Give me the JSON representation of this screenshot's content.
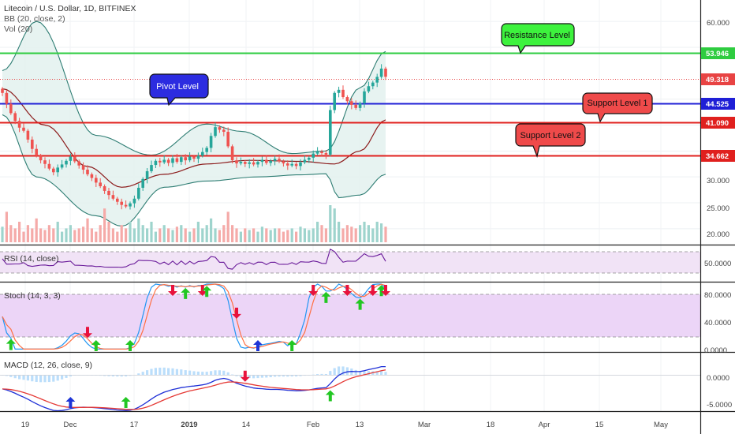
{
  "header": {
    "title": "Litecoin / U.S. Dollar, 1D, BITFINEX",
    "bb": "BB (20, close, 2)",
    "vol": "Vol (20)"
  },
  "panes": {
    "rsi": "RSI (14, close)",
    "stoch": "Stoch (14, 3, 3)",
    "macd": "MACD (12, 26, close, 9)"
  },
  "levels": {
    "resistance": {
      "value": "53.946",
      "bubble": "Resistance Level",
      "color": "#2ecc40"
    },
    "last": {
      "value": "49.318",
      "color": "#e84343"
    },
    "pivot": {
      "value": "44.525",
      "bubble": "Pivot Level",
      "color": "#1f1fd6"
    },
    "support1": {
      "value": "41.090",
      "bubble": "Support Level 1",
      "color": "#e0201e"
    },
    "support2": {
      "value": "34.662",
      "bubble": "Support Level 2",
      "color": "#e0201e"
    }
  },
  "colors": {
    "up": "#26a69a",
    "down": "#ef5350",
    "bb_fill": "#e4f2ef",
    "bb_line": "#2e7d73",
    "ma": "#8b1a1a",
    "rsi_line": "#6a1b9a",
    "rsi_fill": "#f1e3f6",
    "stoch_fill": "#ecd5f7",
    "stoch_k": "#2196f3",
    "stoch_d": "#ff7043",
    "macd_line": "#1e2fd6",
    "signal_line": "#e53935",
    "hist": "#bbdefb",
    "arrow_up_green": "#22c722",
    "arrow_down_red": "#e8123c",
    "arrow_up_blue": "#1e35d6"
  },
  "axis": {
    "price_ticks": [
      "60.000",
      "30.000",
      "25.000",
      "20.000"
    ],
    "rsi_ticks": [
      "50.0000"
    ],
    "stoch_ticks": [
      "80.0000",
      "40.0000",
      "0.0000"
    ],
    "macd_ticks": [
      "0.0000",
      "-5.0000"
    ],
    "dates": [
      "19",
      "Dec",
      "17",
      "2019",
      "14",
      "Feb",
      "13",
      "Mar",
      "18",
      "Apr",
      "15",
      "May"
    ]
  },
  "chart_data": {
    "type": "candlestick",
    "symbol": "Litecoin / U.S. Dollar, 1D, BITFINEX",
    "price_ylim": [
      18,
      62
    ],
    "closes": [
      46.2,
      44.1,
      42.3,
      40.8,
      39.5,
      38.9,
      37.2,
      35.4,
      34.1,
      33.2,
      32.5,
      31.6,
      30.9,
      31.8,
      32.4,
      33.1,
      33.9,
      33.0,
      32.2,
      31.4,
      30.5,
      29.8,
      28.9,
      28.2,
      27.3,
      26.5,
      25.8,
      25.2,
      24.6,
      24.3,
      24.9,
      25.8,
      27.9,
      29.6,
      31.1,
      32.3,
      33.1,
      32.8,
      33.3,
      32.7,
      33.6,
      32.9,
      33.8,
      33.2,
      33.9,
      33.5,
      34.1,
      34.8,
      35.6,
      37.9,
      39.6,
      39.1,
      38.7,
      35.9,
      33.2,
      32.6,
      32.9,
      32.5,
      32.8,
      32.4,
      32.9,
      33.3,
      32.7,
      33.1,
      33.5,
      33.0,
      32.6,
      32.2,
      32.5,
      32.1,
      32.8,
      33.3,
      33.7,
      34.5,
      34.9,
      34.6,
      34.3,
      42.9,
      46.2,
      46.8,
      45.4,
      44.6,
      43.9,
      43.3,
      44.2,
      46.5,
      47.5,
      48.2,
      49.3,
      50.9,
      49.318
    ],
    "bb_upper_anchor": [
      [
        0,
        50.5
      ],
      [
        8,
        60
      ],
      [
        22,
        38
      ],
      [
        35,
        34.2
      ],
      [
        48,
        40.2
      ],
      [
        56,
        38.8
      ],
      [
        68,
        34.5
      ],
      [
        76,
        35
      ],
      [
        84,
        47.2
      ],
      [
        90,
        54.2
      ]
    ],
    "bb_lower_anchor": [
      [
        0,
        42
      ],
      [
        8,
        30
      ],
      [
        22,
        22.5
      ],
      [
        28,
        20.5
      ],
      [
        38,
        28
      ],
      [
        48,
        29.2
      ],
      [
        60,
        30
      ],
      [
        70,
        30.4
      ],
      [
        76,
        30.6
      ],
      [
        79,
        26
      ],
      [
        84,
        26.5
      ],
      [
        90,
        30.5
      ]
    ],
    "bb_basis_anchor": [
      [
        0,
        47
      ],
      [
        10,
        40
      ],
      [
        20,
        32
      ],
      [
        28,
        28
      ],
      [
        38,
        30.5
      ],
      [
        48,
        32.5
      ],
      [
        58,
        33.2
      ],
      [
        70,
        33
      ],
      [
        78,
        32.5
      ],
      [
        84,
        35
      ],
      [
        90,
        41
      ]
    ],
    "volume_pattern": [
      0.35,
      0.8,
      0.4,
      0.3,
      0.5,
      0.2,
      0.4,
      0.3,
      0.6,
      0.3,
      0.25,
      0.4,
      0.3,
      0.5,
      0.2,
      0.3,
      0.4,
      0.25,
      0.3,
      0.35,
      0.6,
      0.3,
      0.2,
      0.4,
      0.9,
      0.5,
      0.3,
      0.2,
      0.4,
      0.3,
      0.5,
      0.3,
      0.6,
      0.4,
      0.3,
      0.5,
      0.2,
      0.3,
      0.4,
      0.3,
      0.25,
      0.35,
      0.4,
      0.3,
      0.2,
      0.3,
      0.5,
      0.3,
      0.4,
      0.6,
      0.3,
      0.25,
      0.4,
      0.8,
      0.4,
      0.3,
      0.2,
      0.3,
      0.25,
      0.3,
      0.2,
      0.35,
      0.3,
      0.25,
      0.3,
      0.3,
      0.2,
      0.25,
      0.3,
      0.2,
      0.35,
      0.3,
      0.25,
      0.3,
      0.5,
      0.4,
      0.3,
      1.0,
      0.9,
      0.5,
      0.3,
      0.4,
      0.35,
      0.3,
      0.4,
      0.5,
      0.4,
      0.3,
      0.5,
      0.45,
      0.35
    ],
    "rsi_ylim": [
      20,
      80
    ],
    "rsi_bands": [
      30,
      70
    ],
    "stoch_ylim": [
      -2,
      100
    ],
    "stoch_bands": [
      20,
      80
    ],
    "macd_ylim": [
      -6,
      3.5
    ],
    "arrows": {
      "stoch": [
        {
          "bar": 2,
          "color": "green",
          "dir": "up"
        },
        {
          "bar": 20,
          "color": "red",
          "dir": "down"
        },
        {
          "bar": 22,
          "color": "green",
          "dir": "up"
        },
        {
          "bar": 30,
          "color": "green",
          "dir": "up"
        },
        {
          "bar": 40,
          "color": "red",
          "dir": "down"
        },
        {
          "bar": 43,
          "color": "green",
          "dir": "up"
        },
        {
          "bar": 47,
          "color": "red",
          "dir": "down"
        },
        {
          "bar": 48,
          "color": "green",
          "dir": "up"
        },
        {
          "bar": 55,
          "color": "red",
          "dir": "down"
        },
        {
          "bar": 60,
          "color": "blue",
          "dir": "up"
        },
        {
          "bar": 68,
          "color": "green",
          "dir": "up"
        },
        {
          "bar": 73,
          "color": "red",
          "dir": "down"
        },
        {
          "bar": 76,
          "color": "green",
          "dir": "up"
        },
        {
          "bar": 81,
          "color": "red",
          "dir": "down"
        },
        {
          "bar": 84,
          "color": "green",
          "dir": "up"
        },
        {
          "bar": 87,
          "color": "red",
          "dir": "down"
        },
        {
          "bar": 89,
          "color": "green",
          "dir": "up"
        },
        {
          "bar": 90,
          "color": "red",
          "dir": "down"
        }
      ],
      "macd": [
        {
          "bar": 16,
          "color": "blue",
          "dir": "up"
        },
        {
          "bar": 29,
          "color": "green",
          "dir": "up"
        },
        {
          "bar": 57,
          "color": "red",
          "dir": "down"
        },
        {
          "bar": 77,
          "color": "green",
          "dir": "up"
        }
      ]
    }
  }
}
